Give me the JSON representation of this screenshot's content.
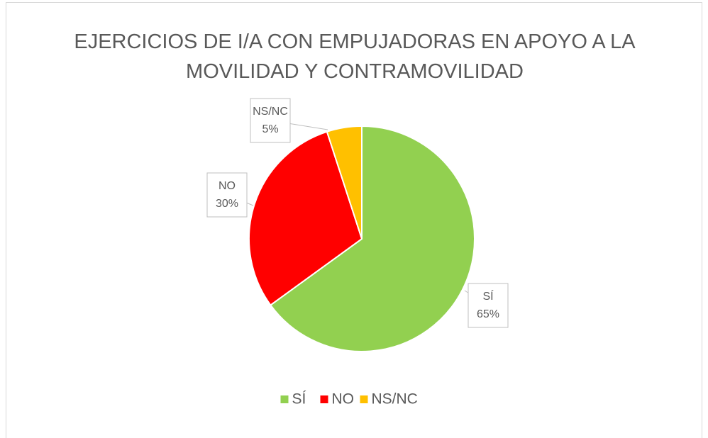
{
  "chart_data": {
    "type": "pie",
    "title": "EJERCICIOS DE I/A CON EMPUJADORAS EN APOYO A LA MOVILIDAD Y CONTRAMOVILIDAD",
    "categories": [
      "SÍ",
      "NO",
      "NS/NC"
    ],
    "values": [
      65,
      30,
      5
    ],
    "value_labels": [
      "65%",
      "30%",
      "5%"
    ],
    "colors": [
      "#92d050",
      "#ff0000",
      "#ffc000"
    ],
    "legend": "bottom"
  }
}
